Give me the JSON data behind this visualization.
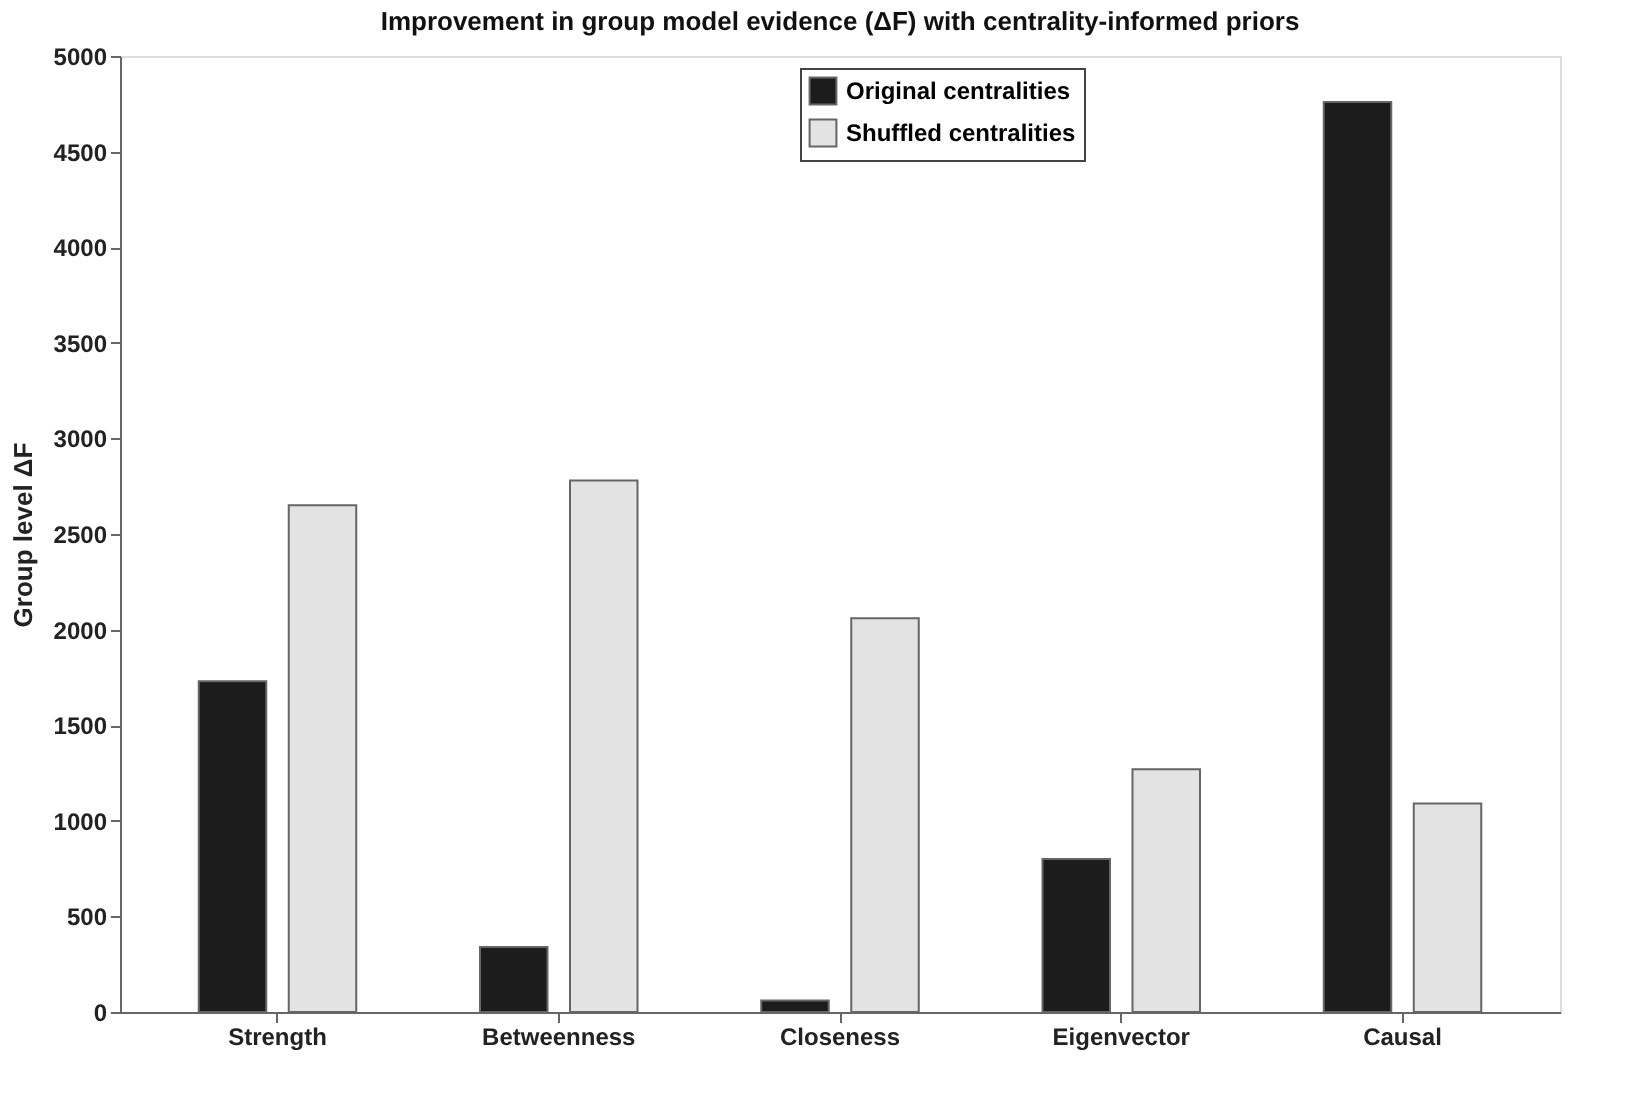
{
  "chart_data": {
    "type": "bar",
    "title": "Improvement in group model evidence (ΔF) with centrality-informed priors",
    "ylabel": "Group level ΔF",
    "categories": [
      "Strength",
      "Betweenness",
      "Closeness",
      "Eigenvector",
      "Causal"
    ],
    "series": [
      {
        "name": "Original centralities",
        "color": "#1c1c1c",
        "values": [
          1730,
          340,
          60,
          800,
          4760
        ]
      },
      {
        "name": "Shuffled centralities",
        "color": "#e3e3e3",
        "values": [
          2650,
          2780,
          2060,
          1270,
          1090
        ]
      }
    ],
    "ylim": [
      0,
      5000
    ],
    "yticks": [
      0,
      500,
      1000,
      1500,
      2000,
      2500,
      3000,
      3500,
      4000,
      4500,
      5000
    ],
    "grid": false,
    "legend": "top"
  }
}
